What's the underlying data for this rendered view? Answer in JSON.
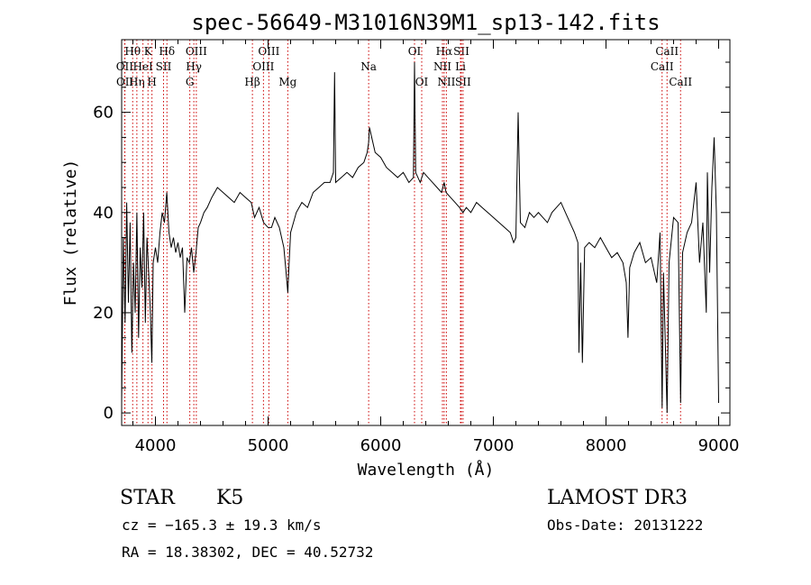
{
  "chart_data": {
    "type": "line",
    "title": "spec-56649-M31016N39M1_sp13-142.fits",
    "xlabel": "Wavelength (Å)",
    "ylabel": "Flux (relative)",
    "xlim": [
      3700,
      9100
    ],
    "ylim": [
      -2.5,
      74.5
    ],
    "xticks": [
      4000,
      5000,
      6000,
      7000,
      8000,
      9000
    ],
    "yticks": [
      0,
      20,
      40,
      60
    ],
    "x_minor_step": 200,
    "y_minor_step": 5,
    "series": [
      {
        "name": "spectrum",
        "points": [
          [
            3700,
            2
          ],
          [
            3715,
            35
          ],
          [
            3730,
            18
          ],
          [
            3745,
            42
          ],
          [
            3760,
            22
          ],
          [
            3775,
            38
          ],
          [
            3790,
            12
          ],
          [
            3805,
            30
          ],
          [
            3820,
            20
          ],
          [
            3835,
            40
          ],
          [
            3850,
            15
          ],
          [
            3865,
            33
          ],
          [
            3880,
            25
          ],
          [
            3895,
            40
          ],
          [
            3910,
            18
          ],
          [
            3925,
            35
          ],
          [
            3940,
            28
          ],
          [
            3955,
            20
          ],
          [
            3968,
            10
          ],
          [
            3980,
            30
          ],
          [
            4000,
            33
          ],
          [
            4020,
            30
          ],
          [
            4040,
            36
          ],
          [
            4060,
            40
          ],
          [
            4080,
            38
          ],
          [
            4101,
            44
          ],
          [
            4120,
            36
          ],
          [
            4140,
            33
          ],
          [
            4160,
            35
          ],
          [
            4180,
            32
          ],
          [
            4200,
            34
          ],
          [
            4220,
            31
          ],
          [
            4240,
            33
          ],
          [
            4260,
            20
          ],
          [
            4280,
            31
          ],
          [
            4300,
            30
          ],
          [
            4320,
            33
          ],
          [
            4340,
            28
          ],
          [
            4360,
            32
          ],
          [
            4380,
            37
          ],
          [
            4400,
            38
          ],
          [
            4430,
            40
          ],
          [
            4460,
            41
          ],
          [
            4500,
            43
          ],
          [
            4550,
            45
          ],
          [
            4600,
            44
          ],
          [
            4650,
            43
          ],
          [
            4700,
            42
          ],
          [
            4750,
            44
          ],
          [
            4800,
            43
          ],
          [
            4850,
            42
          ],
          [
            4880,
            39
          ],
          [
            4920,
            41
          ],
          [
            4960,
            38
          ],
          [
            5000,
            37
          ],
          [
            5030,
            37
          ],
          [
            5060,
            39
          ],
          [
            5100,
            37
          ],
          [
            5140,
            33
          ],
          [
            5160,
            28
          ],
          [
            5175,
            24
          ],
          [
            5185,
            29
          ],
          [
            5200,
            36
          ],
          [
            5250,
            40
          ],
          [
            5300,
            42
          ],
          [
            5350,
            41
          ],
          [
            5400,
            44
          ],
          [
            5450,
            45
          ],
          [
            5500,
            46
          ],
          [
            5550,
            46
          ],
          [
            5580,
            48
          ],
          [
            5590,
            68
          ],
          [
            5600,
            46
          ],
          [
            5650,
            47
          ],
          [
            5700,
            48
          ],
          [
            5750,
            47
          ],
          [
            5800,
            49
          ],
          [
            5850,
            50
          ],
          [
            5880,
            52
          ],
          [
            5893,
            54
          ],
          [
            5900,
            57
          ],
          [
            5920,
            55
          ],
          [
            5950,
            52
          ],
          [
            6000,
            51
          ],
          [
            6050,
            49
          ],
          [
            6100,
            48
          ],
          [
            6150,
            47
          ],
          [
            6200,
            48
          ],
          [
            6250,
            46
          ],
          [
            6290,
            47
          ],
          [
            6300,
            70
          ],
          [
            6310,
            48
          ],
          [
            6350,
            46
          ],
          [
            6380,
            48
          ],
          [
            6420,
            47
          ],
          [
            6460,
            46
          ],
          [
            6500,
            45
          ],
          [
            6540,
            44
          ],
          [
            6563,
            46
          ],
          [
            6580,
            44
          ],
          [
            6620,
            43
          ],
          [
            6660,
            42
          ],
          [
            6700,
            41
          ],
          [
            6730,
            40
          ],
          [
            6760,
            41
          ],
          [
            6800,
            40
          ],
          [
            6850,
            42
          ],
          [
            6900,
            41
          ],
          [
            6950,
            40
          ],
          [
            7000,
            39
          ],
          [
            7050,
            38
          ],
          [
            7100,
            37
          ],
          [
            7150,
            36
          ],
          [
            7180,
            34
          ],
          [
            7200,
            35
          ],
          [
            7220,
            60
          ],
          [
            7240,
            38
          ],
          [
            7280,
            37
          ],
          [
            7320,
            40
          ],
          [
            7360,
            39
          ],
          [
            7400,
            40
          ],
          [
            7440,
            39
          ],
          [
            7480,
            38
          ],
          [
            7520,
            40
          ],
          [
            7560,
            41
          ],
          [
            7600,
            42
          ],
          [
            7640,
            40
          ],
          [
            7680,
            38
          ],
          [
            7720,
            36
          ],
          [
            7750,
            34
          ],
          [
            7760,
            12
          ],
          [
            7775,
            30
          ],
          [
            7790,
            10
          ],
          [
            7810,
            33
          ],
          [
            7850,
            34
          ],
          [
            7900,
            33
          ],
          [
            7950,
            35
          ],
          [
            8000,
            33
          ],
          [
            8050,
            31
          ],
          [
            8100,
            32
          ],
          [
            8150,
            30
          ],
          [
            8180,
            26
          ],
          [
            8195,
            15
          ],
          [
            8210,
            29
          ],
          [
            8250,
            32
          ],
          [
            8300,
            34
          ],
          [
            8350,
            30
          ],
          [
            8400,
            31
          ],
          [
            8450,
            26
          ],
          [
            8480,
            36
          ],
          [
            8498,
            1
          ],
          [
            8510,
            28
          ],
          [
            8542,
            0
          ],
          [
            8560,
            30
          ],
          [
            8600,
            39
          ],
          [
            8640,
            38
          ],
          [
            8662,
            2
          ],
          [
            8680,
            32
          ],
          [
            8720,
            36
          ],
          [
            8760,
            38
          ],
          [
            8800,
            46
          ],
          [
            8830,
            30
          ],
          [
            8860,
            38
          ],
          [
            8890,
            20
          ],
          [
            8900,
            48
          ],
          [
            8920,
            28
          ],
          [
            8940,
            45
          ],
          [
            8960,
            55
          ],
          [
            8980,
            40
          ],
          [
            9000,
            2
          ]
        ]
      }
    ],
    "lines": [
      {
        "label": "Hθ",
        "x": 3798,
        "row": 1
      },
      {
        "label": "OII",
        "x": 3727,
        "row": 2
      },
      {
        "label": "OII",
        "x": 3729,
        "row": 3
      },
      {
        "label": "Hη",
        "x": 3835,
        "row": 3
      },
      {
        "label": "HeI",
        "x": 3889,
        "row": 2
      },
      {
        "label": "K",
        "x": 3934,
        "row": 1
      },
      {
        "label": "SII",
        "x": 4072,
        "row": 2
      },
      {
        "label": "H",
        "x": 3969,
        "row": 3
      },
      {
        "label": "Hδ",
        "x": 4102,
        "row": 1
      },
      {
        "label": "OIII",
        "x": 4363,
        "row": 1
      },
      {
        "label": "Hγ",
        "x": 4341,
        "row": 2
      },
      {
        "label": "G",
        "x": 4305,
        "row": 3
      },
      {
        "label": "OIII",
        "x": 5007,
        "row": 1
      },
      {
        "label": "OIII",
        "x": 4959,
        "row": 2
      },
      {
        "label": "Hβ",
        "x": 4861,
        "row": 3
      },
      {
        "label": "Mg",
        "x": 5175,
        "row": 3
      },
      {
        "label": "Na",
        "x": 5893,
        "row": 2
      },
      {
        "label": "OI",
        "x": 6300,
        "row": 1
      },
      {
        "label": "OI",
        "x": 6364,
        "row": 3
      },
      {
        "label": "Hα",
        "x": 6563,
        "row": 1
      },
      {
        "label": "SII",
        "x": 6716,
        "row": 1
      },
      {
        "label": "NII",
        "x": 6548,
        "row": 2
      },
      {
        "label": "Li",
        "x": 6708,
        "row": 2
      },
      {
        "label": "NII",
        "x": 6583,
        "row": 3
      },
      {
        "label": "SII",
        "x": 6731,
        "row": 3
      },
      {
        "label": "CaII",
        "x": 8542,
        "row": 1
      },
      {
        "label": "CaII",
        "x": 8498,
        "row": 2
      },
      {
        "label": "CaII",
        "x": 8662,
        "row": 3
      }
    ]
  },
  "footer": {
    "object_class": "STAR",
    "subclass": "K5",
    "survey": "LAMOST DR3",
    "cz": "cz = −165.3 ± 19.3 km/s",
    "obs_date": "Obs-Date: 20131222",
    "coords": "RA =  18.38302, DEC =  40.52732"
  },
  "colors": {
    "spectrum": "#000000",
    "line_marker": "#cc0000",
    "axis": "#000000"
  }
}
